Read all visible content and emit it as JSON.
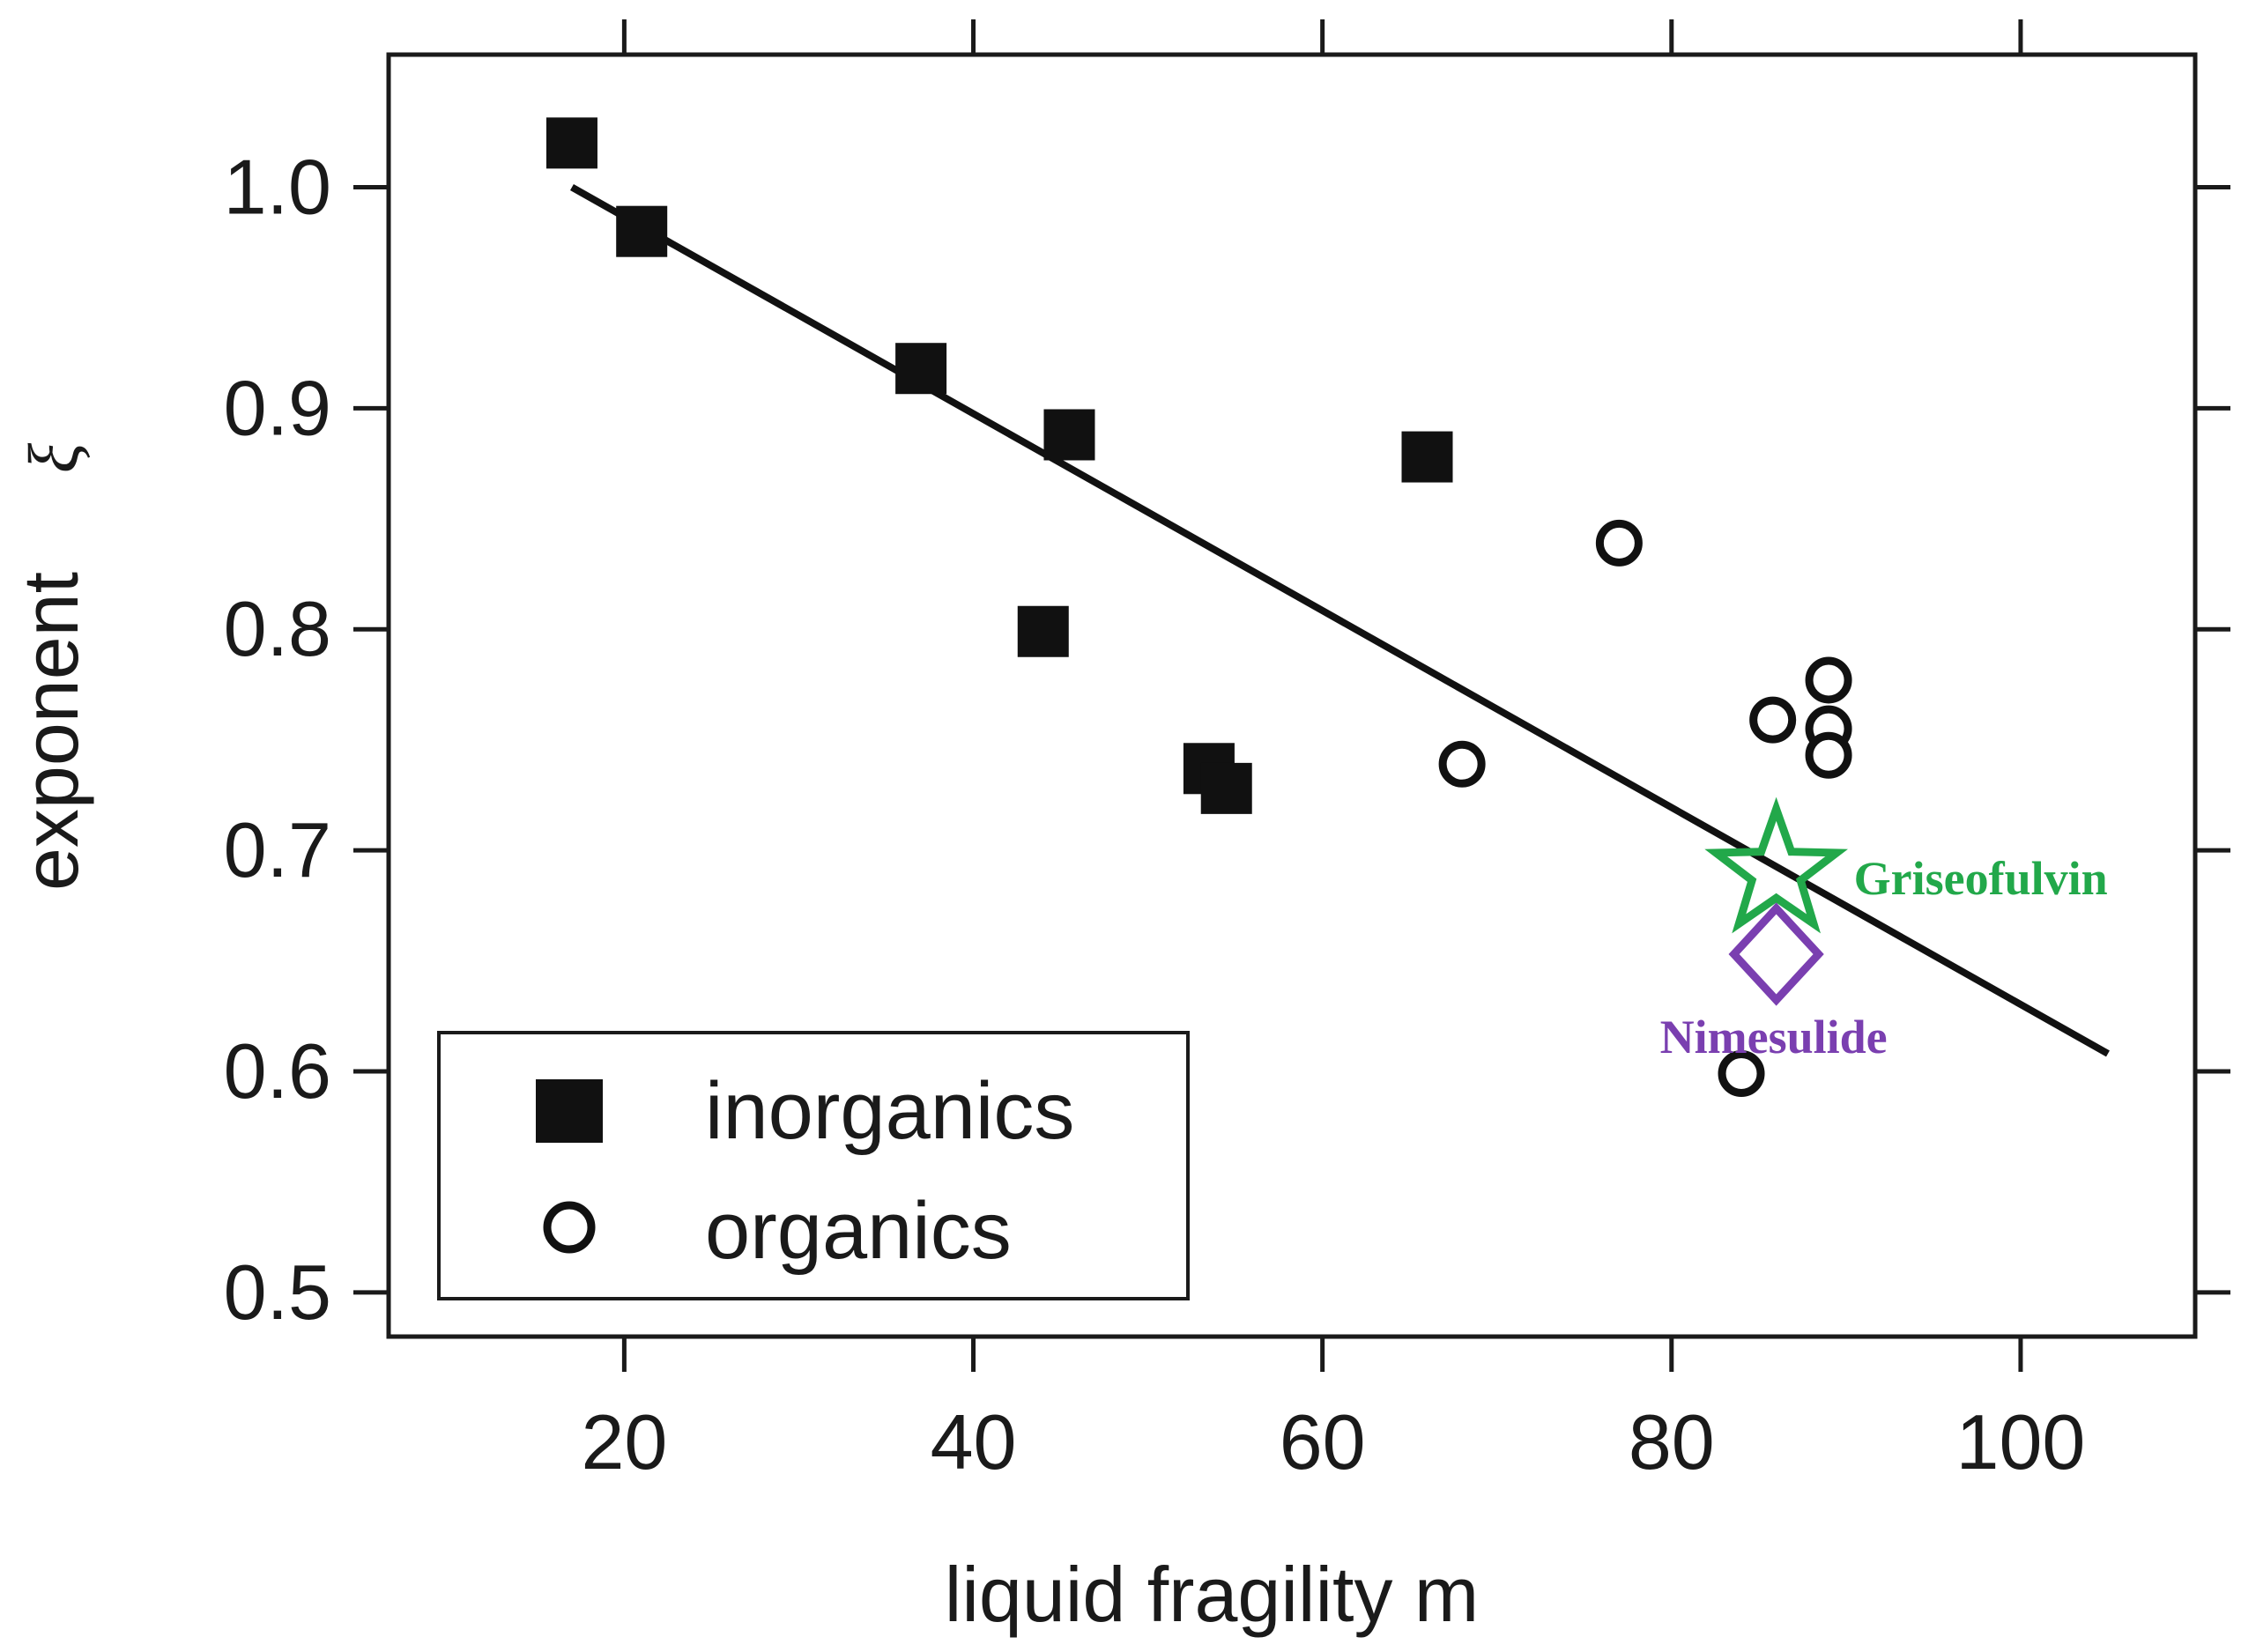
{
  "chart_data": {
    "type": "scatter",
    "title": "",
    "xlabel": "liquid fragility m",
    "ylabel": "exponent",
    "ylabel_symbol": "ξ",
    "xlim": [
      6.5,
      110
    ],
    "ylim": [
      0.48,
      1.06
    ],
    "xticks": [
      20,
      40,
      60,
      80,
      100
    ],
    "yticks": [
      0.5,
      0.6,
      0.7,
      0.8,
      0.9,
      1.0
    ],
    "xtick_labels": [
      "20",
      "40",
      "60",
      "80",
      "100"
    ],
    "ytick_labels": [
      "0.5",
      "0.6",
      "0.7",
      "0.8",
      "0.9",
      "1.0"
    ],
    "grid": false,
    "series": [
      {
        "name": "inorganics",
        "marker": "filled-square",
        "points": [
          {
            "x": 17,
            "y": 1.02
          },
          {
            "x": 21,
            "y": 0.98
          },
          {
            "x": 37,
            "y": 0.918
          },
          {
            "x": 45.5,
            "y": 0.888
          },
          {
            "x": 44,
            "y": 0.799
          },
          {
            "x": 53.5,
            "y": 0.737
          },
          {
            "x": 54.5,
            "y": 0.728
          },
          {
            "x": 66,
            "y": 0.878
          }
        ]
      },
      {
        "name": "organics",
        "marker": "open-circle",
        "points": [
          {
            "x": 77,
            "y": 0.839
          },
          {
            "x": 68,
            "y": 0.739
          },
          {
            "x": 85.8,
            "y": 0.759
          },
          {
            "x": 89,
            "y": 0.777
          },
          {
            "x": 89,
            "y": 0.755
          },
          {
            "x": 89,
            "y": 0.743
          },
          {
            "x": 84,
            "y": 0.599
          }
        ]
      }
    ],
    "fit_line": {
      "x": [
        17,
        105
      ],
      "y": [
        1.0,
        0.608
      ]
    },
    "annotations": [
      {
        "label": "Griseofulvin",
        "marker": "open-star",
        "x": 86,
        "y": 0.69,
        "color": "#22a84a"
      },
      {
        "label": "Nimesulide",
        "marker": "open-diamond",
        "x": 86,
        "y": 0.653,
        "color": "#7a3fb0"
      }
    ],
    "legend": {
      "placement": "bottom-left",
      "entries": [
        "inorganics",
        "organics"
      ]
    }
  }
}
